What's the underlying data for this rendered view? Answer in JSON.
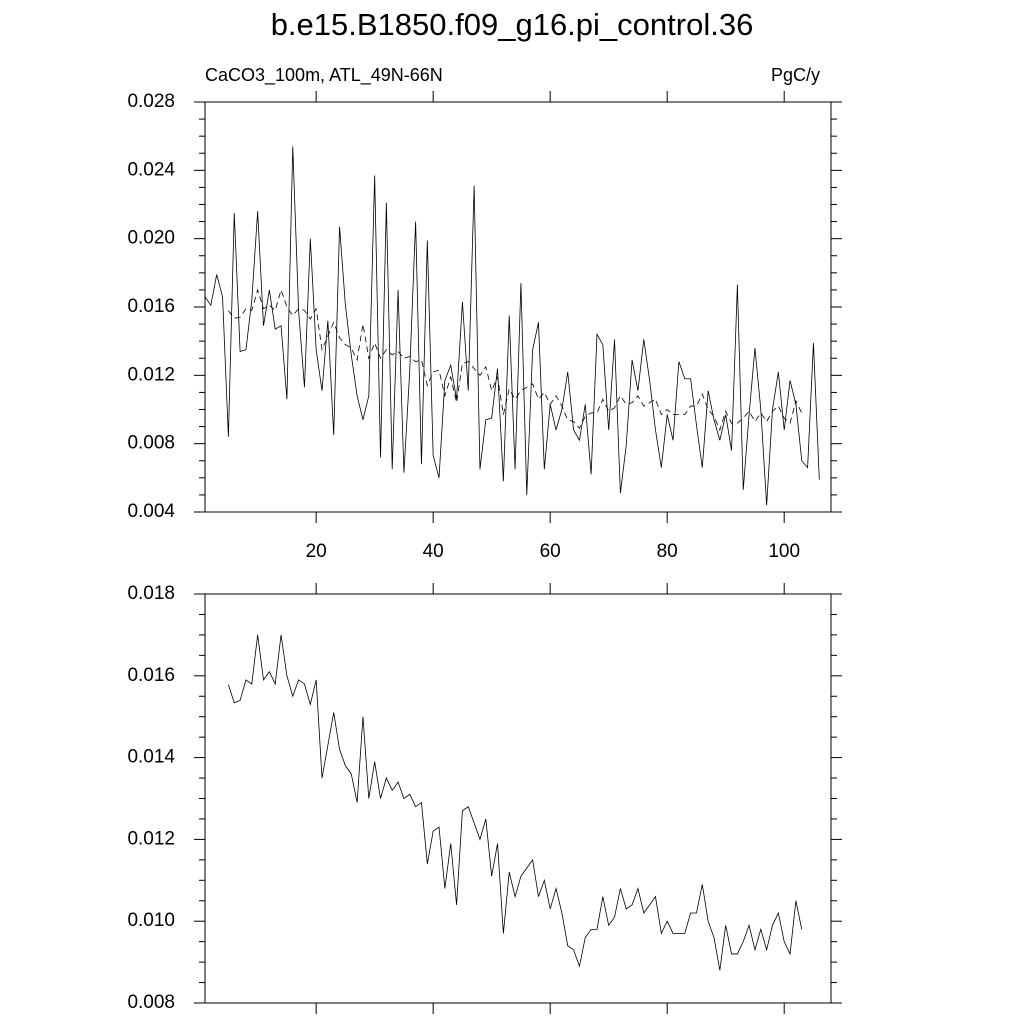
{
  "chart_data": [
    {
      "type": "line",
      "title": "b.e15.B1850.f09_g16.pi_control.36",
      "subtitle_left": "CaCO3_100m, ATL_49N-66N",
      "subtitle_right": "PgC/y",
      "xlim": [
        1,
        108
      ],
      "xticks": [
        20,
        40,
        60,
        80,
        100
      ],
      "xtick_labels": true,
      "ylim": [
        0.004,
        0.028
      ],
      "yticks": [
        0.004,
        0.008,
        0.012,
        0.016,
        {
          "value": 0.02,
          "label": "0.020"
        },
        0.024,
        0.028
      ],
      "series": [
        {
          "color": "#000000",
          "dashed": false,
          "x": [
            1,
            2,
            3,
            4,
            5,
            6,
            7,
            8,
            9,
            10,
            11,
            12,
            13,
            14,
            15,
            16,
            17,
            18,
            19,
            20,
            21,
            22,
            23,
            24,
            25,
            26,
            27,
            28,
            29,
            30,
            31,
            32,
            33,
            34,
            35,
            36,
            37,
            38,
            39,
            40,
            41,
            42,
            43,
            44,
            45,
            46,
            47,
            48,
            49,
            50,
            51,
            52,
            53,
            54,
            55,
            56,
            57,
            58,
            59,
            60,
            61,
            62,
            63,
            64,
            65,
            66,
            67,
            68,
            69,
            70,
            71,
            72,
            73,
            74,
            75,
            76,
            77,
            78,
            79,
            80,
            81,
            82,
            83,
            84,
            85,
            86,
            87,
            88,
            89,
            90,
            91,
            92,
            93,
            94,
            95,
            96,
            97,
            98,
            99,
            100,
            101,
            102,
            103,
            104,
            105,
            106
          ],
          "values": [
            0.0166,
            0.0161,
            0.0179,
            0.0166,
            0.0084,
            0.0215,
            0.0134,
            0.0135,
            0.0164,
            0.0216,
            0.0149,
            0.017,
            0.0147,
            0.0149,
            0.0106,
            0.0254,
            0.0158,
            0.0113,
            0.02,
            0.0135,
            0.0111,
            0.0152,
            0.0085,
            0.0207,
            0.0161,
            0.0132,
            0.0108,
            0.0094,
            0.0108,
            0.0237,
            0.0072,
            0.0221,
            0.0065,
            0.017,
            0.0063,
            0.0123,
            0.021,
            0.0068,
            0.0199,
            0.0073,
            0.006,
            0.0117,
            0.0126,
            0.0106,
            0.0163,
            0.0111,
            0.0231,
            0.0065,
            0.0094,
            0.0095,
            0.0124,
            0.0058,
            0.0155,
            0.0065,
            0.0174,
            0.005,
            0.0135,
            0.0151,
            0.0065,
            0.0103,
            0.0088,
            0.01,
            0.0122,
            0.0088,
            0.0082,
            0.0103,
            0.0062,
            0.0144,
            0.0138,
            0.0088,
            0.0141,
            0.0051,
            0.0079,
            0.0129,
            0.0111,
            0.0141,
            0.0117,
            0.0088,
            0.0066,
            0.0097,
            0.0082,
            0.0128,
            0.0118,
            0.0118,
            0.0091,
            0.0066,
            0.0111,
            0.0094,
            0.0082,
            0.0097,
            0.0076,
            0.0173,
            0.0053,
            0.0097,
            0.0136,
            0.01,
            0.0044,
            0.01,
            0.0122,
            0.0088,
            0.0117,
            0.0103,
            0.007,
            0.0066,
            0.0139,
            0.0059
          ]
        },
        {
          "color": "#000000",
          "dashed": true,
          "x": [
            5,
            6,
            7,
            8,
            9,
            10,
            11,
            12,
            13,
            14,
            15,
            16,
            17,
            18,
            19,
            20,
            21,
            22,
            23,
            24,
            25,
            26,
            27,
            28,
            29,
            30,
            31,
            32,
            33,
            34,
            35,
            36,
            37,
            38,
            39,
            40,
            41,
            42,
            43,
            44,
            45,
            46,
            47,
            48,
            49,
            50,
            51,
            52,
            53,
            54,
            55,
            56,
            57,
            58,
            59,
            60,
            61,
            62,
            63,
            64,
            65,
            66,
            67,
            68,
            69,
            70,
            71,
            72,
            73,
            74,
            75,
            76,
            77,
            78,
            79,
            80,
            81,
            82,
            83,
            84,
            85,
            86,
            87,
            88,
            89,
            90,
            91,
            92,
            93,
            94,
            95,
            96,
            97,
            98,
            99,
            100,
            101,
            102,
            103
          ],
          "values": [
            0.01578,
            0.01534,
            0.0154,
            0.0159,
            0.0158,
            0.017,
            0.0159,
            0.0161,
            0.0158,
            0.017,
            0.016,
            0.0155,
            0.0159,
            0.0158,
            0.0153,
            0.0159,
            0.0135,
            0.0143,
            0.0151,
            0.0142,
            0.0138,
            0.0136,
            0.0129,
            0.015,
            0.013,
            0.0139,
            0.013,
            0.0135,
            0.0132,
            0.0134,
            0.013,
            0.0131,
            0.0128,
            0.0129,
            0.0114,
            0.0122,
            0.0123,
            0.0108,
            0.0119,
            0.0104,
            0.0127,
            0.0128,
            0.0124,
            0.012,
            0.0125,
            0.0111,
            0.0119,
            0.0097,
            0.0112,
            0.0106,
            0.0111,
            0.0113,
            0.0115,
            0.0106,
            0.011,
            0.0103,
            0.0108,
            0.0102,
            0.0094,
            0.0093,
            0.0089,
            0.0096,
            0.0098,
            0.0098,
            0.0106,
            0.0099,
            0.0101,
            0.0108,
            0.0103,
            0.0104,
            0.0108,
            0.0102,
            0.0104,
            0.0106,
            0.0097,
            0.01,
            0.0097,
            0.0097,
            0.0097,
            0.0102,
            0.0102,
            0.0109,
            0.01,
            0.0096,
            0.0088,
            0.0099,
            0.0092,
            0.0092,
            0.0095,
            0.0099,
            0.0093,
            0.0098,
            0.0093,
            0.0099,
            0.0102,
            0.0095,
            0.0092,
            0.0105,
            0.0098
          ]
        }
      ]
    },
    {
      "type": "line",
      "xlim": [
        1,
        108
      ],
      "xticks": [
        20,
        40,
        60,
        80,
        100
      ],
      "xtick_labels": false,
      "ylim": [
        0.008,
        0.018
      ],
      "yticks": [
        0.008,
        {
          "value": 0.01,
          "label": "0.010"
        },
        0.012,
        0.014,
        0.016,
        0.018
      ],
      "series": [
        {
          "color": "#000000",
          "dashed": false,
          "x": [
            5,
            6,
            7,
            8,
            9,
            10,
            11,
            12,
            13,
            14,
            15,
            16,
            17,
            18,
            19,
            20,
            21,
            22,
            23,
            24,
            25,
            26,
            27,
            28,
            29,
            30,
            31,
            32,
            33,
            34,
            35,
            36,
            37,
            38,
            39,
            40,
            41,
            42,
            43,
            44,
            45,
            46,
            47,
            48,
            49,
            50,
            51,
            52,
            53,
            54,
            55,
            56,
            57,
            58,
            59,
            60,
            61,
            62,
            63,
            64,
            65,
            66,
            67,
            68,
            69,
            70,
            71,
            72,
            73,
            74,
            75,
            76,
            77,
            78,
            79,
            80,
            81,
            82,
            83,
            84,
            85,
            86,
            87,
            88,
            89,
            90,
            91,
            92,
            93,
            94,
            95,
            96,
            97,
            98,
            99,
            100,
            101,
            102,
            103
          ],
          "values": [
            0.01578,
            0.01534,
            0.0154,
            0.0159,
            0.0158,
            0.017,
            0.0159,
            0.0161,
            0.0158,
            0.017,
            0.016,
            0.0155,
            0.0159,
            0.0158,
            0.0153,
            0.0159,
            0.0135,
            0.0143,
            0.0151,
            0.0142,
            0.0138,
            0.0136,
            0.0129,
            0.015,
            0.013,
            0.0139,
            0.013,
            0.0135,
            0.0132,
            0.0134,
            0.013,
            0.0131,
            0.0128,
            0.0129,
            0.0114,
            0.0122,
            0.0123,
            0.0108,
            0.0119,
            0.0104,
            0.0127,
            0.0128,
            0.0124,
            0.012,
            0.0125,
            0.0111,
            0.0119,
            0.0097,
            0.0112,
            0.0106,
            0.0111,
            0.0113,
            0.0115,
            0.0106,
            0.011,
            0.0103,
            0.0108,
            0.0102,
            0.0094,
            0.0093,
            0.0089,
            0.0096,
            0.0098,
            0.0098,
            0.0106,
            0.0099,
            0.0101,
            0.0108,
            0.0103,
            0.0104,
            0.0108,
            0.0102,
            0.0104,
            0.0106,
            0.0097,
            0.01,
            0.0097,
            0.0097,
            0.0097,
            0.0102,
            0.0102,
            0.0109,
            0.01,
            0.0096,
            0.0088,
            0.0099,
            0.0092,
            0.0092,
            0.0095,
            0.0099,
            0.0093,
            0.0098,
            0.0093,
            0.0099,
            0.0102,
            0.0095,
            0.0092,
            0.0105,
            0.0098
          ]
        }
      ]
    }
  ]
}
